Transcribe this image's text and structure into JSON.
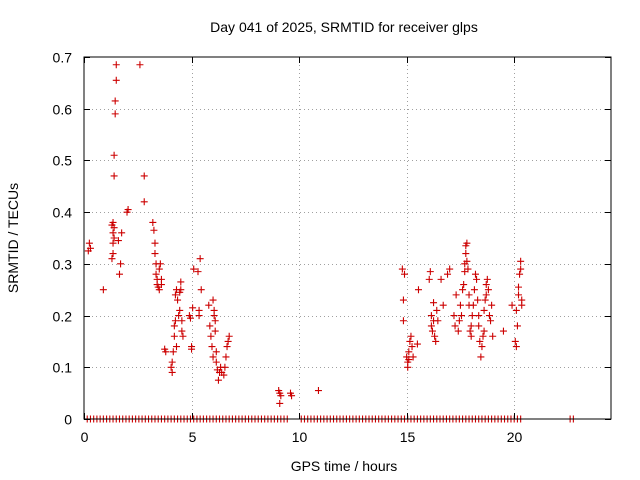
{
  "chart_data": {
    "type": "scatter",
    "title": "Day 041 of 2025, SRMTID for receiver glps",
    "xlabel": "GPS time / hours",
    "ylabel": "SRMTID / TECUs",
    "xlim": [
      0,
      24.5
    ],
    "ylim": [
      0,
      0.7
    ],
    "xticks": [
      0,
      5,
      10,
      15,
      20
    ],
    "xtick_labels": [
      "0",
      "5",
      "10",
      "15",
      "20"
    ],
    "yticks": [
      0,
      0.1,
      0.2,
      0.3,
      0.4,
      0.5,
      0.6,
      0.7
    ],
    "ytick_labels": [
      "0",
      "0.1",
      "0.2",
      "0.3",
      "0.4",
      "0.5",
      "0.6",
      "0.7"
    ],
    "grid": true,
    "marker": "+",
    "marker_color": "#cc0000",
    "series": [
      {
        "name": "SRMTID",
        "points": [
          [
            0.2,
            0.325
          ],
          [
            0.25,
            0.34
          ],
          [
            0.3,
            0.33
          ],
          [
            0.9,
            0.25
          ],
          [
            1.3,
            0.31
          ],
          [
            1.35,
            0.32
          ],
          [
            1.35,
            0.34
          ],
          [
            1.4,
            0.35
          ],
          [
            1.35,
            0.36
          ],
          [
            1.4,
            0.37
          ],
          [
            1.3,
            0.375
          ],
          [
            1.35,
            0.38
          ],
          [
            1.4,
            0.47
          ],
          [
            1.4,
            0.51
          ],
          [
            1.45,
            0.59
          ],
          [
            1.45,
            0.615
          ],
          [
            1.5,
            0.655
          ],
          [
            1.5,
            0.685
          ],
          [
            1.6,
            0.345
          ],
          [
            1.65,
            0.28
          ],
          [
            1.7,
            0.3
          ],
          [
            1.75,
            0.36
          ],
          [
            2.0,
            0.4
          ],
          [
            2.05,
            0.405
          ],
          [
            2.6,
            0.685
          ],
          [
            2.8,
            0.47
          ],
          [
            2.8,
            0.42
          ],
          [
            3.2,
            0.38
          ],
          [
            3.25,
            0.365
          ],
          [
            3.3,
            0.34
          ],
          [
            3.3,
            0.32
          ],
          [
            3.35,
            0.3
          ],
          [
            3.35,
            0.28
          ],
          [
            3.4,
            0.27
          ],
          [
            3.4,
            0.26
          ],
          [
            3.45,
            0.255
          ],
          [
            3.5,
            0.25
          ],
          [
            3.5,
            0.29
          ],
          [
            3.55,
            0.3
          ],
          [
            3.6,
            0.27
          ],
          [
            3.6,
            0.26
          ],
          [
            3.75,
            0.135
          ],
          [
            3.8,
            0.13
          ],
          [
            4.05,
            0.1
          ],
          [
            4.1,
            0.09
          ],
          [
            4.1,
            0.11
          ],
          [
            4.15,
            0.13
          ],
          [
            4.2,
            0.16
          ],
          [
            4.2,
            0.18
          ],
          [
            4.25,
            0.19
          ],
          [
            4.25,
            0.24
          ],
          [
            4.3,
            0.25
          ],
          [
            4.35,
            0.23
          ],
          [
            4.4,
            0.2
          ],
          [
            4.45,
            0.21
          ],
          [
            4.45,
            0.245
          ],
          [
            4.5,
            0.25
          ],
          [
            4.5,
            0.265
          ],
          [
            4.55,
            0.19
          ],
          [
            4.55,
            0.17
          ],
          [
            4.6,
            0.16
          ],
          [
            4.3,
            0.14
          ],
          [
            4.9,
            0.2
          ],
          [
            4.95,
            0.195
          ],
          [
            5.0,
            0.14
          ],
          [
            5.0,
            0.135
          ],
          [
            5.05,
            0.215
          ],
          [
            5.1,
            0.29
          ],
          [
            5.3,
            0.285
          ],
          [
            5.35,
            0.21
          ],
          [
            5.35,
            0.2
          ],
          [
            5.4,
            0.31
          ],
          [
            5.45,
            0.25
          ],
          [
            5.8,
            0.22
          ],
          [
            5.85,
            0.18
          ],
          [
            5.9,
            0.16
          ],
          [
            5.95,
            0.14
          ],
          [
            6.0,
            0.12
          ],
          [
            6.0,
            0.23
          ],
          [
            6.05,
            0.2
          ],
          [
            6.05,
            0.21
          ],
          [
            6.1,
            0.19
          ],
          [
            6.1,
            0.17
          ],
          [
            6.15,
            0.13
          ],
          [
            6.15,
            0.11
          ],
          [
            6.2,
            0.095
          ],
          [
            6.25,
            0.075
          ],
          [
            6.3,
            0.09
          ],
          [
            6.35,
            0.1
          ],
          [
            6.4,
            0.09
          ],
          [
            6.5,
            0.085
          ],
          [
            6.55,
            0.1
          ],
          [
            6.6,
            0.12
          ],
          [
            6.65,
            0.14
          ],
          [
            6.7,
            0.15
          ],
          [
            6.75,
            0.16
          ],
          [
            9.05,
            0.055
          ],
          [
            9.1,
            0.05
          ],
          [
            9.15,
            0.045
          ],
          [
            9.1,
            0.03
          ],
          [
            9.6,
            0.05
          ],
          [
            9.65,
            0.045
          ],
          [
            10.9,
            0.055
          ],
          [
            14.8,
            0.29
          ],
          [
            14.85,
            0.23
          ],
          [
            14.85,
            0.19
          ],
          [
            14.9,
            0.28
          ],
          [
            15.0,
            0.12
          ],
          [
            15.05,
            0.11
          ],
          [
            15.05,
            0.1
          ],
          [
            15.1,
            0.115
          ],
          [
            15.1,
            0.13
          ],
          [
            15.15,
            0.15
          ],
          [
            15.2,
            0.16
          ],
          [
            15.25,
            0.14
          ],
          [
            15.3,
            0.12
          ],
          [
            15.5,
            0.145
          ],
          [
            15.55,
            0.25
          ],
          [
            16.05,
            0.27
          ],
          [
            16.1,
            0.285
          ],
          [
            16.15,
            0.2
          ],
          [
            16.15,
            0.18
          ],
          [
            16.2,
            0.17
          ],
          [
            16.25,
            0.19
          ],
          [
            16.25,
            0.225
          ],
          [
            16.3,
            0.16
          ],
          [
            16.35,
            0.15
          ],
          [
            16.4,
            0.21
          ],
          [
            16.45,
            0.19
          ],
          [
            16.6,
            0.27
          ],
          [
            16.7,
            0.22
          ],
          [
            16.9,
            0.28
          ],
          [
            17.0,
            0.29
          ],
          [
            17.2,
            0.2
          ],
          [
            17.25,
            0.18
          ],
          [
            17.3,
            0.24
          ],
          [
            17.4,
            0.17
          ],
          [
            17.45,
            0.19
          ],
          [
            17.5,
            0.22
          ],
          [
            17.55,
            0.2
          ],
          [
            17.6,
            0.25
          ],
          [
            17.65,
            0.26
          ],
          [
            17.7,
            0.285
          ],
          [
            17.7,
            0.3
          ],
          [
            17.75,
            0.32
          ],
          [
            17.75,
            0.335
          ],
          [
            17.8,
            0.34
          ],
          [
            17.8,
            0.305
          ],
          [
            17.85,
            0.29
          ],
          [
            17.9,
            0.24
          ],
          [
            17.9,
            0.22
          ],
          [
            17.95,
            0.17
          ],
          [
            18.0,
            0.16
          ],
          [
            18.0,
            0.18
          ],
          [
            18.05,
            0.2
          ],
          [
            18.1,
            0.22
          ],
          [
            18.15,
            0.25
          ],
          [
            18.2,
            0.28
          ],
          [
            18.25,
            0.27
          ],
          [
            18.3,
            0.23
          ],
          [
            18.35,
            0.2
          ],
          [
            18.35,
            0.18
          ],
          [
            18.4,
            0.15
          ],
          [
            18.45,
            0.12
          ],
          [
            18.5,
            0.14
          ],
          [
            18.55,
            0.16
          ],
          [
            18.6,
            0.17
          ],
          [
            18.6,
            0.21
          ],
          [
            18.65,
            0.23
          ],
          [
            18.7,
            0.24
          ],
          [
            18.7,
            0.26
          ],
          [
            18.75,
            0.27
          ],
          [
            18.8,
            0.25
          ],
          [
            18.85,
            0.2
          ],
          [
            18.9,
            0.19
          ],
          [
            18.95,
            0.22
          ],
          [
            19.0,
            0.16
          ],
          [
            19.5,
            0.17
          ],
          [
            19.9,
            0.22
          ],
          [
            20.05,
            0.15
          ],
          [
            20.1,
            0.14
          ],
          [
            20.1,
            0.21
          ],
          [
            20.15,
            0.18
          ],
          [
            20.2,
            0.24
          ],
          [
            20.2,
            0.255
          ],
          [
            20.25,
            0.28
          ],
          [
            20.3,
            0.305
          ],
          [
            20.3,
            0.29
          ],
          [
            20.35,
            0.22
          ],
          [
            20.35,
            0.23
          ]
        ],
        "zero_runs": [
          [
            0.15,
            9.5
          ],
          [
            10.1,
            20.3
          ],
          [
            22.6,
            22.75
          ]
        ],
        "zero_step": 0.15
      }
    ]
  }
}
